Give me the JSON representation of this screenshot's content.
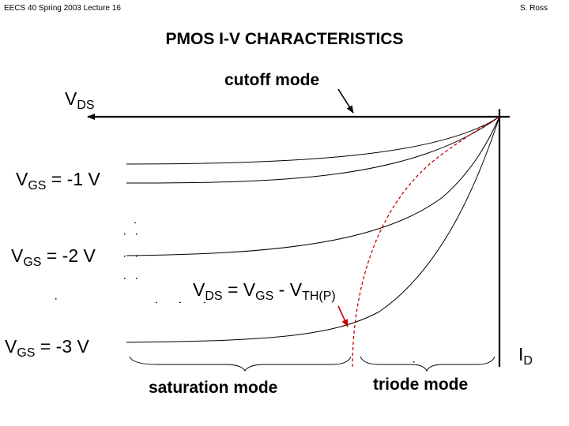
{
  "header": {
    "course": "EECS 40 Spring 2003  Lecture 16",
    "author": "S. Ross"
  },
  "title": "PMOS I-V CHARACTERISTICS",
  "labels": {
    "cutoff_mode": "cutoff mode",
    "vds_axis": {
      "main": "V",
      "sub": "DS"
    },
    "id_axis": {
      "main": "I",
      "sub": "D"
    },
    "saturation_mode": "saturation mode",
    "triode_mode": "triode mode",
    "boundary": {
      "lhs_main": "V",
      "lhs_sub": "DS",
      "eq": " = ",
      "v1_main": "V",
      "v1_sub": "GS",
      "minus": " - ",
      "v2_main": "V",
      "v2_sub": "TH(P)"
    }
  },
  "curves": [
    {
      "label_main": "V",
      "label_sub": "GS",
      "label_value": " = -1 V"
    },
    {
      "label_main": "V",
      "label_sub": "GS",
      "label_value": " = -2 V"
    },
    {
      "label_main": "V",
      "label_sub": "GS",
      "label_value": " = -3 V"
    }
  ],
  "colors": {
    "axes": "#000000",
    "curves": "#000000",
    "boundary": "#cc0000",
    "pointer": "#cc0000"
  }
}
